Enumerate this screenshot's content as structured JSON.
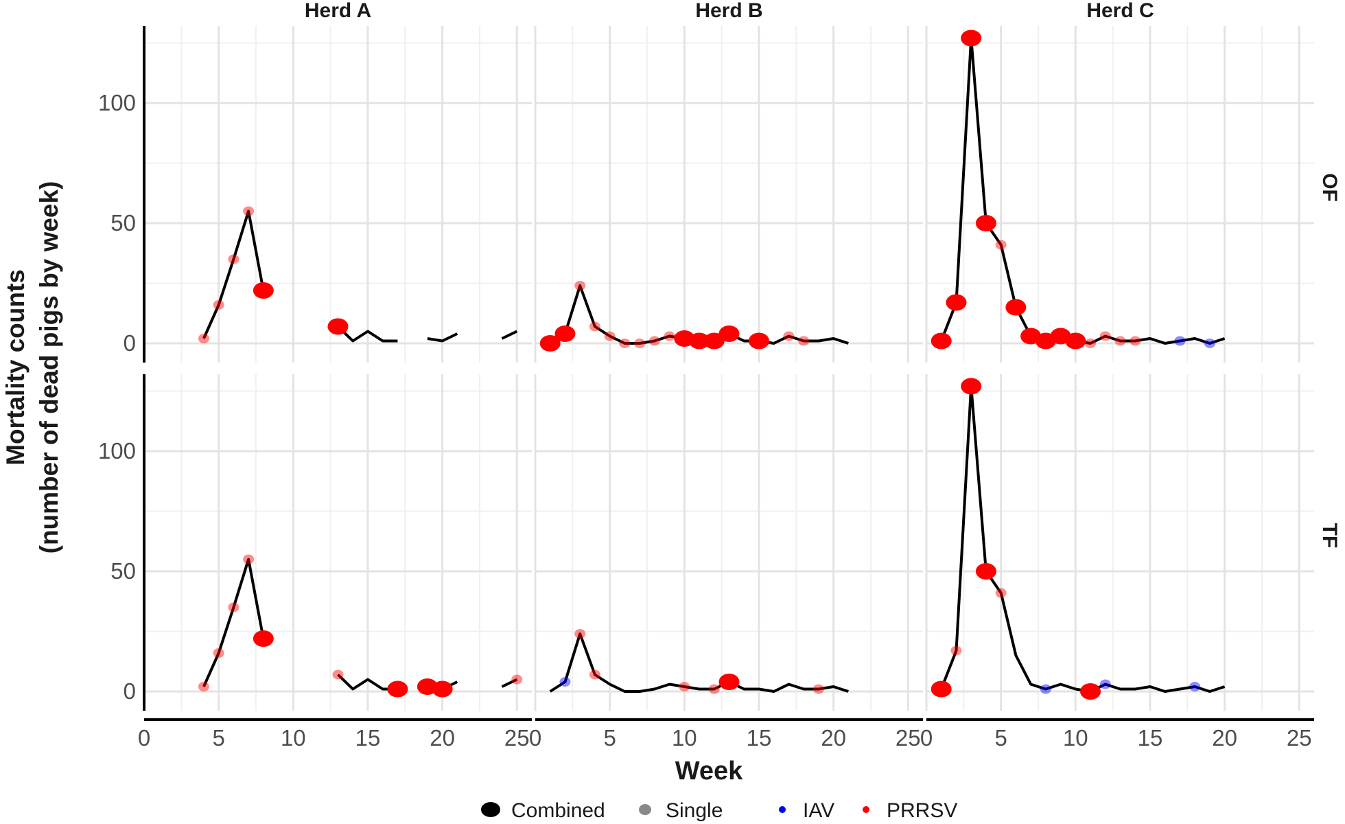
{
  "chart_data": {
    "type": "line",
    "xlabel": "Week",
    "ylabel_line1": "Mortality counts",
    "ylabel_line2": "(number of dead pigs by week)",
    "xlim": [
      0,
      26
    ],
    "ylim": [
      -8,
      132
    ],
    "x_ticks": [
      0,
      5,
      10,
      15,
      20,
      25
    ],
    "x_tick_labels": [
      "0",
      "5",
      "10",
      "15",
      "20",
      "25"
    ],
    "y_ticks": [
      0,
      50,
      100
    ],
    "y_tick_labels": [
      "0",
      "50",
      "100"
    ],
    "columns": [
      "Herd A",
      "Herd B",
      "Herd C"
    ],
    "rows": [
      "OF",
      "TF"
    ],
    "legend": [
      {
        "label": "Combined",
        "kind": "combined",
        "color": "#000000"
      },
      {
        "label": "Single",
        "kind": "single",
        "color": "#888888"
      },
      {
        "label": "IAV",
        "kind": "iav",
        "color": "#0000ff"
      },
      {
        "label": "PRRSV",
        "kind": "prrsv",
        "color": "#ff0000"
      }
    ],
    "colors": {
      "line": "#000000",
      "prrsv": "#ff0000",
      "iav": "#0000ff",
      "single_alpha": 0.45
    },
    "panels": [
      {
        "row": "OF",
        "herd": "Herd A",
        "line_segments": [
          [
            [
              4,
              2
            ],
            [
              5,
              16
            ],
            [
              6,
              35
            ],
            [
              7,
              55
            ],
            [
              8,
              22
            ]
          ],
          [
            [
              13,
              7
            ],
            [
              14,
              1
            ],
            [
              15,
              5
            ],
            [
              16,
              1
            ],
            [
              17,
              1
            ]
          ],
          [
            [
              19,
              2
            ],
            [
              20,
              1
            ],
            [
              21,
              4
            ]
          ],
          [
            [
              24,
              2
            ],
            [
              25,
              5
            ]
          ]
        ],
        "points": [
          {
            "x": 4,
            "y": 2,
            "agent": "PRRSV",
            "type": "Single"
          },
          {
            "x": 5,
            "y": 16,
            "agent": "PRRSV",
            "type": "Single"
          },
          {
            "x": 6,
            "y": 35,
            "agent": "PRRSV",
            "type": "Single"
          },
          {
            "x": 7,
            "y": 55,
            "agent": "PRRSV",
            "type": "Single"
          },
          {
            "x": 8,
            "y": 22,
            "agent": "PRRSV",
            "type": "Combined"
          },
          {
            "x": 13,
            "y": 7,
            "agent": "PRRSV",
            "type": "Combined"
          }
        ]
      },
      {
        "row": "OF",
        "herd": "Herd B",
        "line_segments": [
          [
            [
              1,
              0
            ],
            [
              2,
              4
            ],
            [
              3,
              24
            ],
            [
              4,
              7
            ],
            [
              5,
              3
            ],
            [
              6,
              0
            ],
            [
              7,
              0
            ],
            [
              8,
              1
            ],
            [
              9,
              3
            ],
            [
              10,
              2
            ],
            [
              11,
              1
            ],
            [
              12,
              1
            ],
            [
              13,
              4
            ],
            [
              14,
              1
            ],
            [
              15,
              1
            ],
            [
              16,
              0
            ],
            [
              17,
              3
            ],
            [
              18,
              1
            ],
            [
              19,
              1
            ],
            [
              20,
              2
            ],
            [
              21,
              0
            ]
          ]
        ],
        "points": [
          {
            "x": 1,
            "y": 0,
            "agent": "PRRSV",
            "type": "Combined"
          },
          {
            "x": 2,
            "y": 4,
            "agent": "PRRSV",
            "type": "Combined"
          },
          {
            "x": 3,
            "y": 24,
            "agent": "PRRSV",
            "type": "Single"
          },
          {
            "x": 4,
            "y": 7,
            "agent": "PRRSV",
            "type": "Single"
          },
          {
            "x": 5,
            "y": 3,
            "agent": "PRRSV",
            "type": "Single"
          },
          {
            "x": 6,
            "y": 0,
            "agent": "PRRSV",
            "type": "Single"
          },
          {
            "x": 7,
            "y": 0,
            "agent": "PRRSV",
            "type": "Single"
          },
          {
            "x": 8,
            "y": 1,
            "agent": "PRRSV",
            "type": "Single"
          },
          {
            "x": 9,
            "y": 3,
            "agent": "PRRSV",
            "type": "Single"
          },
          {
            "x": 10,
            "y": 2,
            "agent": "PRRSV",
            "type": "Combined"
          },
          {
            "x": 11,
            "y": 1,
            "agent": "PRRSV",
            "type": "Combined"
          },
          {
            "x": 12,
            "y": 1,
            "agent": "PRRSV",
            "type": "Combined"
          },
          {
            "x": 13,
            "y": 4,
            "agent": "PRRSV",
            "type": "Combined"
          },
          {
            "x": 15,
            "y": 1,
            "agent": "PRRSV",
            "type": "Combined"
          },
          {
            "x": 17,
            "y": 3,
            "agent": "PRRSV",
            "type": "Single"
          },
          {
            "x": 18,
            "y": 1,
            "agent": "PRRSV",
            "type": "Single"
          }
        ]
      },
      {
        "row": "OF",
        "herd": "Herd C",
        "line_segments": [
          [
            [
              1,
              1
            ],
            [
              2,
              17
            ],
            [
              3,
              127
            ],
            [
              4,
              50
            ],
            [
              5,
              41
            ],
            [
              6,
              15
            ],
            [
              7,
              3
            ],
            [
              8,
              1
            ],
            [
              9,
              3
            ],
            [
              10,
              1
            ],
            [
              11,
              0
            ],
            [
              12,
              3
            ],
            [
              13,
              1
            ],
            [
              14,
              1
            ],
            [
              15,
              2
            ],
            [
              16,
              0
            ],
            [
              17,
              1
            ],
            [
              18,
              2
            ],
            [
              19,
              0
            ],
            [
              20,
              2
            ]
          ]
        ],
        "points": [
          {
            "x": 1,
            "y": 1,
            "agent": "PRRSV",
            "type": "Combined"
          },
          {
            "x": 2,
            "y": 17,
            "agent": "PRRSV",
            "type": "Combined"
          },
          {
            "x": 3,
            "y": 127,
            "agent": "PRRSV",
            "type": "Combined"
          },
          {
            "x": 4,
            "y": 50,
            "agent": "PRRSV",
            "type": "Combined"
          },
          {
            "x": 5,
            "y": 41,
            "agent": "PRRSV",
            "type": "Single"
          },
          {
            "x": 6,
            "y": 15,
            "agent": "PRRSV",
            "type": "Combined"
          },
          {
            "x": 7,
            "y": 3,
            "agent": "PRRSV",
            "type": "Combined"
          },
          {
            "x": 8,
            "y": 1,
            "agent": "PRRSV",
            "type": "Combined"
          },
          {
            "x": 9,
            "y": 3,
            "agent": "PRRSV",
            "type": "Combined"
          },
          {
            "x": 10,
            "y": 1,
            "agent": "PRRSV",
            "type": "Combined"
          },
          {
            "x": 11,
            "y": 0,
            "agent": "PRRSV",
            "type": "Single"
          },
          {
            "x": 12,
            "y": 3,
            "agent": "PRRSV",
            "type": "Single"
          },
          {
            "x": 13,
            "y": 1,
            "agent": "PRRSV",
            "type": "Single"
          },
          {
            "x": 14,
            "y": 1,
            "agent": "PRRSV",
            "type": "Single"
          },
          {
            "x": 17,
            "y": 1,
            "agent": "IAV",
            "type": "Single"
          },
          {
            "x": 19,
            "y": 0,
            "agent": "IAV",
            "type": "Single"
          }
        ]
      },
      {
        "row": "TF",
        "herd": "Herd A",
        "line_segments": [
          [
            [
              4,
              2
            ],
            [
              5,
              16
            ],
            [
              6,
              35
            ],
            [
              7,
              55
            ],
            [
              8,
              22
            ]
          ],
          [
            [
              13,
              7
            ],
            [
              14,
              1
            ],
            [
              15,
              5
            ],
            [
              16,
              1
            ],
            [
              17,
              1
            ]
          ],
          [
            [
              19,
              2
            ],
            [
              20,
              1
            ],
            [
              21,
              4
            ]
          ],
          [
            [
              24,
              2
            ],
            [
              25,
              5
            ]
          ]
        ],
        "points": [
          {
            "x": 4,
            "y": 2,
            "agent": "PRRSV",
            "type": "Single"
          },
          {
            "x": 5,
            "y": 16,
            "agent": "PRRSV",
            "type": "Single"
          },
          {
            "x": 6,
            "y": 35,
            "agent": "PRRSV",
            "type": "Single"
          },
          {
            "x": 7,
            "y": 55,
            "agent": "PRRSV",
            "type": "Single"
          },
          {
            "x": 8,
            "y": 22,
            "agent": "PRRSV",
            "type": "Combined"
          },
          {
            "x": 13,
            "y": 7,
            "agent": "PRRSV",
            "type": "Single"
          },
          {
            "x": 17,
            "y": 1,
            "agent": "PRRSV",
            "type": "Combined"
          },
          {
            "x": 19,
            "y": 2,
            "agent": "PRRSV",
            "type": "Combined"
          },
          {
            "x": 20,
            "y": 1,
            "agent": "PRRSV",
            "type": "Combined"
          },
          {
            "x": 25,
            "y": 5,
            "agent": "PRRSV",
            "type": "Single"
          }
        ]
      },
      {
        "row": "TF",
        "herd": "Herd B",
        "line_segments": [
          [
            [
              1,
              0
            ],
            [
              2,
              4
            ],
            [
              3,
              24
            ],
            [
              4,
              7
            ],
            [
              5,
              3
            ],
            [
              6,
              0
            ],
            [
              7,
              0
            ],
            [
              8,
              1
            ],
            [
              9,
              3
            ],
            [
              10,
              2
            ],
            [
              11,
              1
            ],
            [
              12,
              1
            ],
            [
              13,
              4
            ],
            [
              14,
              1
            ],
            [
              15,
              1
            ],
            [
              16,
              0
            ],
            [
              17,
              3
            ],
            [
              18,
              1
            ],
            [
              19,
              1
            ],
            [
              20,
              2
            ],
            [
              21,
              0
            ]
          ]
        ],
        "points": [
          {
            "x": 2,
            "y": 4,
            "agent": "IAV",
            "type": "Single"
          },
          {
            "x": 3,
            "y": 24,
            "agent": "PRRSV",
            "type": "Single"
          },
          {
            "x": 4,
            "y": 7,
            "agent": "PRRSV",
            "type": "Single"
          },
          {
            "x": 10,
            "y": 2,
            "agent": "PRRSV",
            "type": "Single"
          },
          {
            "x": 12,
            "y": 1,
            "agent": "PRRSV",
            "type": "Single"
          },
          {
            "x": 13,
            "y": 4,
            "agent": "PRRSV",
            "type": "Combined"
          },
          {
            "x": 19,
            "y": 1,
            "agent": "PRRSV",
            "type": "Single"
          }
        ]
      },
      {
        "row": "TF",
        "herd": "Herd C",
        "line_segments": [
          [
            [
              1,
              1
            ],
            [
              2,
              17
            ],
            [
              3,
              127
            ],
            [
              4,
              50
            ],
            [
              5,
              41
            ],
            [
              6,
              15
            ],
            [
              7,
              3
            ],
            [
              8,
              1
            ],
            [
              9,
              3
            ],
            [
              10,
              1
            ],
            [
              11,
              0
            ],
            [
              12,
              3
            ],
            [
              13,
              1
            ],
            [
              14,
              1
            ],
            [
              15,
              2
            ],
            [
              16,
              0
            ],
            [
              17,
              1
            ],
            [
              18,
              2
            ],
            [
              19,
              0
            ],
            [
              20,
              2
            ]
          ]
        ],
        "points": [
          {
            "x": 1,
            "y": 1,
            "agent": "PRRSV",
            "type": "Combined"
          },
          {
            "x": 2,
            "y": 17,
            "agent": "PRRSV",
            "type": "Single"
          },
          {
            "x": 3,
            "y": 127,
            "agent": "PRRSV",
            "type": "Combined"
          },
          {
            "x": 4,
            "y": 50,
            "agent": "PRRSV",
            "type": "Combined"
          },
          {
            "x": 5,
            "y": 41,
            "agent": "PRRSV",
            "type": "Single"
          },
          {
            "x": 8,
            "y": 1,
            "agent": "IAV",
            "type": "Single"
          },
          {
            "x": 11,
            "y": 0,
            "agent": "PRRSV",
            "type": "Combined"
          },
          {
            "x": 12,
            "y": 3,
            "agent": "IAV",
            "type": "Single"
          },
          {
            "x": 18,
            "y": 2,
            "agent": "IAV",
            "type": "Single"
          }
        ]
      }
    ]
  }
}
